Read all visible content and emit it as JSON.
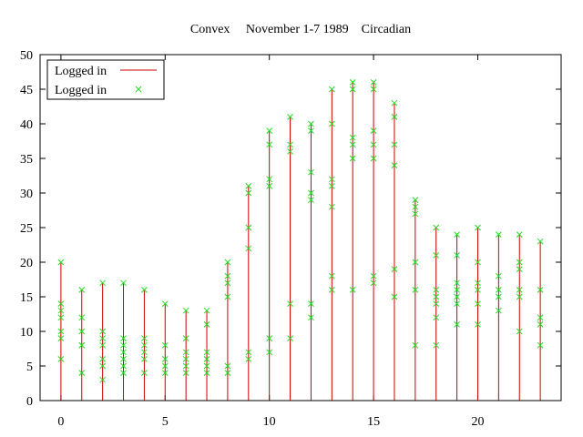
{
  "chart_data": {
    "type": "impulse+scatter",
    "title": "Convex     November 1-7 1989    Circadian",
    "xlabel": "",
    "ylabel": "",
    "xlim": [
      -1,
      24
    ],
    "ylim": [
      0,
      50
    ],
    "xticks": [
      0,
      5,
      10,
      15,
      20
    ],
    "yticks": [
      0,
      5,
      10,
      15,
      20,
      25,
      30,
      35,
      40,
      45,
      50
    ],
    "legend_position": "top-left",
    "series": [
      {
        "name": "Logged in",
        "style": "impulses",
        "color": "#cc0000",
        "x": [
          0,
          1,
          2,
          3,
          4,
          5,
          6,
          7,
          8,
          9,
          10,
          11,
          12,
          13,
          14,
          15,
          16,
          17,
          18,
          19,
          20,
          21,
          22,
          23
        ],
        "y": [
          20,
          16,
          17,
          17,
          16,
          14,
          13,
          13,
          20,
          31,
          39,
          41,
          40,
          45,
          46,
          46,
          43,
          29,
          25,
          24,
          25,
          24,
          24,
          23
        ]
      },
      {
        "name": "Logged in",
        "style": "points",
        "color": "#22dd22",
        "points": [
          [
            0,
            20
          ],
          [
            0,
            14
          ],
          [
            0,
            13
          ],
          [
            0,
            12
          ],
          [
            0,
            10
          ],
          [
            0,
            9
          ],
          [
            0,
            6
          ],
          [
            1,
            16
          ],
          [
            1,
            12
          ],
          [
            1,
            10
          ],
          [
            1,
            8
          ],
          [
            1,
            8
          ],
          [
            1,
            4
          ],
          [
            2,
            17
          ],
          [
            2,
            10
          ],
          [
            2,
            9
          ],
          [
            2,
            8
          ],
          [
            2,
            6
          ],
          [
            2,
            5
          ],
          [
            2,
            3
          ],
          [
            3,
            17
          ],
          [
            3,
            9
          ],
          [
            3,
            8
          ],
          [
            3,
            7
          ],
          [
            3,
            6
          ],
          [
            3,
            5
          ],
          [
            3,
            4
          ],
          [
            4,
            16
          ],
          [
            4,
            9
          ],
          [
            4,
            8
          ],
          [
            4,
            7
          ],
          [
            4,
            6
          ],
          [
            4,
            4
          ],
          [
            5,
            14
          ],
          [
            5,
            8
          ],
          [
            5,
            6
          ],
          [
            5,
            5
          ],
          [
            5,
            4
          ],
          [
            6,
            13
          ],
          [
            6,
            9
          ],
          [
            6,
            7
          ],
          [
            6,
            6
          ],
          [
            6,
            5
          ],
          [
            6,
            4
          ],
          [
            7,
            13
          ],
          [
            7,
            11
          ],
          [
            7,
            7
          ],
          [
            7,
            6
          ],
          [
            7,
            5
          ],
          [
            7,
            4
          ],
          [
            8,
            20
          ],
          [
            8,
            18
          ],
          [
            8,
            17
          ],
          [
            8,
            15
          ],
          [
            8,
            5
          ],
          [
            8,
            4
          ],
          [
            9,
            31
          ],
          [
            9,
            30
          ],
          [
            9,
            25
          ],
          [
            9,
            22
          ],
          [
            9,
            7
          ],
          [
            9,
            6
          ],
          [
            10,
            39
          ],
          [
            10,
            37
          ],
          [
            10,
            32
          ],
          [
            10,
            31
          ],
          [
            10,
            9
          ],
          [
            10,
            7
          ],
          [
            11,
            41
          ],
          [
            11,
            37
          ],
          [
            11,
            36
          ],
          [
            11,
            14
          ],
          [
            11,
            9
          ],
          [
            12,
            40
          ],
          [
            12,
            39
          ],
          [
            12,
            33
          ],
          [
            12,
            30
          ],
          [
            12,
            29
          ],
          [
            12,
            14
          ],
          [
            12,
            12
          ],
          [
            13,
            45
          ],
          [
            13,
            40
          ],
          [
            13,
            32
          ],
          [
            13,
            31
          ],
          [
            13,
            28
          ],
          [
            13,
            18
          ],
          [
            13,
            16
          ],
          [
            14,
            46
          ],
          [
            14,
            45
          ],
          [
            14,
            38
          ],
          [
            14,
            37
          ],
          [
            14,
            35
          ],
          [
            14,
            16
          ],
          [
            15,
            46
          ],
          [
            15,
            45
          ],
          [
            15,
            39
          ],
          [
            15,
            37
          ],
          [
            15,
            35
          ],
          [
            15,
            18
          ],
          [
            15,
            17
          ],
          [
            16,
            43
          ],
          [
            16,
            41
          ],
          [
            16,
            37
          ],
          [
            16,
            34
          ],
          [
            16,
            19
          ],
          [
            16,
            15
          ],
          [
            17,
            29
          ],
          [
            17,
            28
          ],
          [
            17,
            27
          ],
          [
            17,
            20
          ],
          [
            17,
            16
          ],
          [
            17,
            8
          ],
          [
            18,
            25
          ],
          [
            18,
            21
          ],
          [
            18,
            16
          ],
          [
            18,
            15
          ],
          [
            18,
            14
          ],
          [
            18,
            12
          ],
          [
            18,
            8
          ],
          [
            19,
            24
          ],
          [
            19,
            21
          ],
          [
            19,
            17
          ],
          [
            19,
            16
          ],
          [
            19,
            15
          ],
          [
            19,
            14
          ],
          [
            19,
            11
          ],
          [
            20,
            25
          ],
          [
            20,
            20
          ],
          [
            20,
            17
          ],
          [
            20,
            16
          ],
          [
            20,
            14
          ],
          [
            20,
            11
          ],
          [
            21,
            24
          ],
          [
            21,
            18
          ],
          [
            21,
            16
          ],
          [
            21,
            15
          ],
          [
            21,
            13
          ],
          [
            22,
            24
          ],
          [
            22,
            20
          ],
          [
            22,
            19
          ],
          [
            22,
            16
          ],
          [
            22,
            15
          ],
          [
            22,
            10
          ],
          [
            23,
            23
          ],
          [
            23,
            16
          ],
          [
            23,
            12
          ],
          [
            23,
            11
          ],
          [
            23,
            8
          ]
        ]
      }
    ]
  }
}
